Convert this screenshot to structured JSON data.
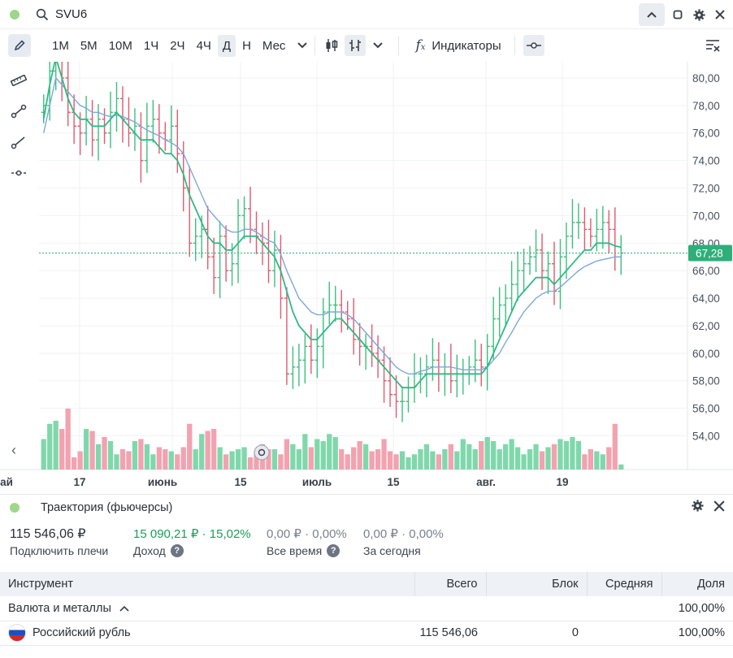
{
  "header": {
    "ticker": "SVU6"
  },
  "toolbar": {
    "periods": [
      "1М",
      "5М",
      "10М",
      "1Ч",
      "2Ч",
      "4Ч",
      "Д",
      "Н",
      "Мес"
    ],
    "active_period": "Д",
    "indicators_label": "Индикаторы"
  },
  "chart": {
    "price_label": "67,28",
    "y_ticks": [
      "80,00",
      "78,00",
      "76,00",
      "74,00",
      "72,00",
      "70,00",
      "68,00",
      "66,00",
      "64,00",
      "62,00",
      "60,00",
      "58,00",
      "56,00",
      "54,00"
    ],
    "x_ticks": [
      "ай",
      "17",
      "июнь",
      "15",
      "июль",
      "15",
      "авг.",
      "19"
    ]
  },
  "chart_data": {
    "type": "candlestick",
    "ylim": [
      52.5,
      81.5
    ],
    "last_price": 67.28,
    "colors": {
      "up": "#3bbf7e",
      "down": "#e05a6e",
      "ma_fast": "#2fba86",
      "ma_slow": "#7fa8d8",
      "vol_up": "#7fd8ab",
      "vol_down": "#f2a2b0"
    },
    "closes": [
      78.0,
      80.5,
      82.0,
      80.0,
      77.5,
      76.5,
      76.0,
      77.0,
      75.5,
      77.0,
      76.0,
      77.5,
      78.5,
      77.0,
      76.0,
      76.5,
      74.0,
      76.5,
      77.0,
      76.0,
      75.5,
      76.5,
      74.5,
      72.0,
      68.0,
      68.5,
      69.0,
      67.0,
      65.5,
      68.5,
      66.0,
      66.5,
      70.0,
      70.5,
      69.0,
      68.5,
      68.0,
      66.0,
      67.5,
      64.0,
      58.5,
      59.0,
      59.5,
      60.5,
      59.5,
      60.5,
      63.0,
      63.5,
      63.5,
      63.0,
      62.5,
      61.0,
      60.5,
      60.5,
      60.0,
      59.5,
      58.0,
      57.0,
      56.5,
      56.5,
      57.5,
      58.5,
      58.5,
      59.0,
      59.5,
      58.5,
      59.0,
      58.0,
      58.5,
      58.5,
      59.0,
      59.5,
      59.0,
      60.5,
      62.5,
      63.5,
      64.0,
      65.0,
      66.0,
      66.5,
      67.0,
      67.5,
      66.0,
      66.5,
      64.5,
      67.0,
      68.5,
      69.5,
      69.5,
      69.0,
      68.5,
      69.0,
      69.5,
      69.0,
      67.0,
      67.28
    ],
    "ma_fast": [
      77.0,
      79.5,
      81.5,
      80.0,
      78.5,
      77.5,
      77.0,
      77.0,
      76.5,
      76.5,
      76.5,
      77.0,
      77.5,
      77.0,
      76.5,
      76.0,
      75.5,
      75.5,
      75.5,
      75.0,
      74.5,
      74.5,
      74.0,
      73.0,
      71.5,
      70.5,
      69.5,
      68.5,
      68.0,
      68.0,
      67.5,
      67.5,
      68.0,
      68.5,
      68.5,
      68.5,
      68.0,
      67.5,
      67.0,
      66.0,
      64.5,
      63.0,
      62.0,
      61.5,
      61.0,
      61.0,
      61.5,
      62.0,
      62.5,
      62.5,
      62.0,
      61.5,
      61.0,
      60.5,
      60.0,
      59.5,
      59.0,
      58.5,
      58.0,
      57.5,
      57.5,
      57.5,
      58.0,
      58.5,
      58.5,
      58.5,
      58.5,
      58.5,
      58.5,
      58.5,
      58.5,
      58.5,
      58.5,
      59.0,
      60.0,
      61.0,
      62.0,
      63.0,
      64.0,
      64.5,
      65.0,
      65.5,
      65.5,
      65.5,
      65.0,
      65.5,
      66.0,
      66.5,
      67.0,
      67.5,
      67.5,
      68.0,
      68.0,
      68.0,
      67.8,
      67.7
    ],
    "ma_slow": [
      76.0,
      78.0,
      80.0,
      79.5,
      79.0,
      78.5,
      78.0,
      77.8,
      77.5,
      77.5,
      77.3,
      77.2,
      77.3,
      77.2,
      77.0,
      76.8,
      76.5,
      76.2,
      76.0,
      75.8,
      75.5,
      75.3,
      75.0,
      74.5,
      73.5,
      72.5,
      71.5,
      70.5,
      70.0,
      69.5,
      69.0,
      68.8,
      68.8,
      69.0,
      69.0,
      68.8,
      68.5,
      68.2,
      68.0,
      67.2,
      66.0,
      65.0,
      64.0,
      63.5,
      63.0,
      62.8,
      62.8,
      63.0,
      63.0,
      63.0,
      62.8,
      62.5,
      62.0,
      61.5,
      61.0,
      60.5,
      60.0,
      59.5,
      59.0,
      58.7,
      58.5,
      58.5,
      58.7,
      58.8,
      59.0,
      59.0,
      59.0,
      59.0,
      58.9,
      58.8,
      58.8,
      58.8,
      58.8,
      59.0,
      59.5,
      60.0,
      60.8,
      61.5,
      62.3,
      63.0,
      63.5,
      64.0,
      64.3,
      64.5,
      64.5,
      64.8,
      65.2,
      65.6,
      66.0,
      66.3,
      66.5,
      66.7,
      66.8,
      66.9,
      67.0,
      67.0
    ],
    "volumes": [
      30,
      45,
      48,
      40,
      60,
      12,
      18,
      40,
      38,
      25,
      32,
      28,
      15,
      20,
      18,
      28,
      30,
      25,
      15,
      22,
      20,
      18,
      15,
      22,
      45,
      20,
      35,
      38,
      40,
      22,
      15,
      18,
      20,
      22,
      12,
      18,
      25,
      20,
      20,
      15,
      30,
      25,
      20,
      35,
      22,
      30,
      28,
      35,
      32,
      20,
      15,
      22,
      28,
      25,
      18,
      20,
      30,
      18,
      15,
      18,
      12,
      15,
      20,
      25,
      18,
      15,
      20,
      25,
      18,
      30,
      25,
      20,
      28,
      32,
      28,
      20,
      25,
      30,
      22,
      15,
      20,
      25,
      18,
      22,
      25,
      30,
      28,
      32,
      28,
      15,
      20,
      18,
      15,
      22,
      45,
      5
    ]
  },
  "panel": {
    "title": "Траектория (фьючерсы)",
    "total_value": "115 546,06 ₽",
    "total_label": "Подключить плечи",
    "income_value": "15 090,21 ₽ · 15,02%",
    "income_label": "Доход",
    "alltime_value": "0,00 ₽ · 0,00%",
    "alltime_label": "Все время",
    "today_value": "0,00 ₽ · 0,00%",
    "today_label": "За сегодня"
  },
  "table": {
    "headers": [
      "Инструмент",
      "Всего",
      "Блок",
      "Средняя",
      "Доля"
    ],
    "group_label": "Валюта и металлы",
    "group_share": "100,00%",
    "rows": [
      {
        "name": "Российский рубль",
        "total": "115 546,06",
        "block": "0",
        "avg": "",
        "share": "100,00%"
      }
    ]
  }
}
